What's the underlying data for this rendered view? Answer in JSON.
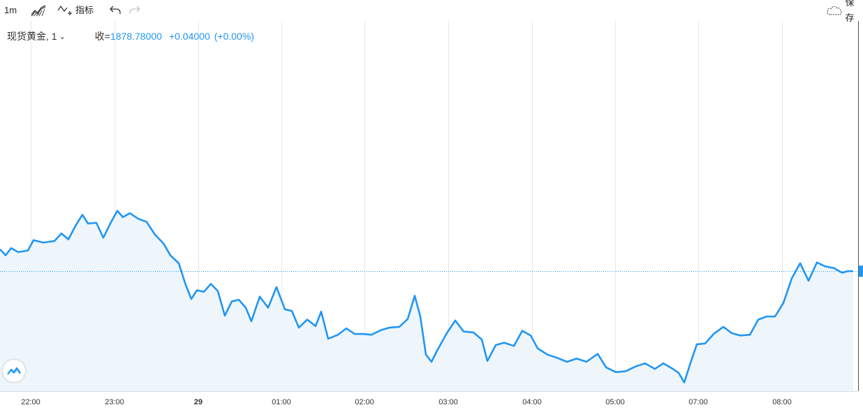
{
  "toolbar": {
    "interval": "1m",
    "indicator_label": "指标",
    "save_label": "保存"
  },
  "legend": {
    "symbol": "现货黄金, 1",
    "close_label": "收=",
    "close_value": "1878.78000",
    "change": "+0.04000",
    "change_pct": "(+0.00%)"
  },
  "colors": {
    "line": "#2196f3",
    "fill": "#eef6fc",
    "grid": "#e3e7ec",
    "price_line": "#2196f3"
  },
  "chart_data": {
    "type": "area",
    "x_tick_labels": [
      "22:00",
      "23:00",
      "29",
      "01:00",
      "02:00",
      "03:00",
      "04:00",
      "05:00",
      "07:00",
      "08:00"
    ],
    "bold_tick": "29",
    "current_price": 1878.78,
    "price_line": "dotted",
    "grid": true,
    "price_index_path": [
      [
        0,
        0.55
      ],
      [
        8,
        0.4
      ],
      [
        16,
        0.58
      ],
      [
        26,
        0.48
      ],
      [
        40,
        0.52
      ],
      [
        48,
        0.78
      ],
      [
        62,
        0.72
      ],
      [
        78,
        0.76
      ],
      [
        88,
        0.95
      ],
      [
        98,
        0.8
      ],
      [
        108,
        1.14
      ],
      [
        118,
        1.42
      ],
      [
        126,
        1.2
      ],
      [
        138,
        1.22
      ],
      [
        148,
        0.84
      ],
      [
        158,
        1.2
      ],
      [
        168,
        1.52
      ],
      [
        176,
        1.36
      ],
      [
        186,
        1.46
      ],
      [
        198,
        1.32
      ],
      [
        210,
        1.24
      ],
      [
        222,
        0.92
      ],
      [
        234,
        0.7
      ],
      [
        244,
        0.4
      ],
      [
        256,
        0.2
      ],
      [
        266,
        -0.35
      ],
      [
        274,
        -0.7
      ],
      [
        282,
        -0.48
      ],
      [
        292,
        -0.52
      ],
      [
        302,
        -0.32
      ],
      [
        312,
        -0.5
      ],
      [
        322,
        -1.12
      ],
      [
        332,
        -0.76
      ],
      [
        342,
        -0.72
      ],
      [
        352,
        -0.92
      ],
      [
        360,
        -1.26
      ],
      [
        372,
        -0.64
      ],
      [
        384,
        -0.92
      ],
      [
        396,
        -0.4
      ],
      [
        408,
        -0.96
      ],
      [
        418,
        -1.0
      ],
      [
        428,
        -1.42
      ],
      [
        440,
        -1.22
      ],
      [
        452,
        -1.38
      ],
      [
        460,
        -1.02
      ],
      [
        470,
        -1.7
      ],
      [
        484,
        -1.6
      ],
      [
        496,
        -1.44
      ],
      [
        508,
        -1.58
      ],
      [
        520,
        -1.58
      ],
      [
        532,
        -1.6
      ],
      [
        546,
        -1.48
      ],
      [
        558,
        -1.42
      ],
      [
        572,
        -1.4
      ],
      [
        584,
        -1.2
      ],
      [
        594,
        -0.62
      ],
      [
        602,
        -1.14
      ],
      [
        610,
        -2.1
      ],
      [
        618,
        -2.28
      ],
      [
        626,
        -2.0
      ],
      [
        640,
        -1.56
      ],
      [
        652,
        -1.24
      ],
      [
        664,
        -1.52
      ],
      [
        678,
        -1.54
      ],
      [
        690,
        -1.72
      ],
      [
        698,
        -2.26
      ],
      [
        710,
        -1.86
      ],
      [
        722,
        -1.8
      ],
      [
        736,
        -1.88
      ],
      [
        748,
        -1.5
      ],
      [
        760,
        -1.62
      ],
      [
        770,
        -1.94
      ],
      [
        784,
        -2.1
      ],
      [
        798,
        -2.18
      ],
      [
        812,
        -2.28
      ],
      [
        826,
        -2.2
      ],
      [
        840,
        -2.28
      ],
      [
        856,
        -2.08
      ],
      [
        868,
        -2.42
      ],
      [
        882,
        -2.54
      ],
      [
        896,
        -2.52
      ],
      [
        910,
        -2.4
      ],
      [
        924,
        -2.32
      ],
      [
        938,
        -2.46
      ],
      [
        950,
        -2.32
      ],
      [
        962,
        -2.44
      ],
      [
        972,
        -2.56
      ],
      [
        980,
        -2.8
      ],
      [
        988,
        -2.36
      ],
      [
        998,
        -1.84
      ],
      [
        1010,
        -1.82
      ],
      [
        1022,
        -1.58
      ],
      [
        1036,
        -1.4
      ],
      [
        1048,
        -1.56
      ],
      [
        1060,
        -1.62
      ],
      [
        1074,
        -1.6
      ],
      [
        1086,
        -1.22
      ],
      [
        1098,
        -1.14
      ],
      [
        1110,
        -1.14
      ],
      [
        1122,
        -0.8
      ],
      [
        1134,
        -0.18
      ],
      [
        1146,
        0.2
      ],
      [
        1158,
        -0.24
      ],
      [
        1170,
        0.22
      ],
      [
        1182,
        0.12
      ],
      [
        1194,
        0.08
      ],
      [
        1206,
        -0.04
      ],
      [
        1214,
        0.0
      ],
      [
        1222,
        0.0
      ]
    ]
  }
}
